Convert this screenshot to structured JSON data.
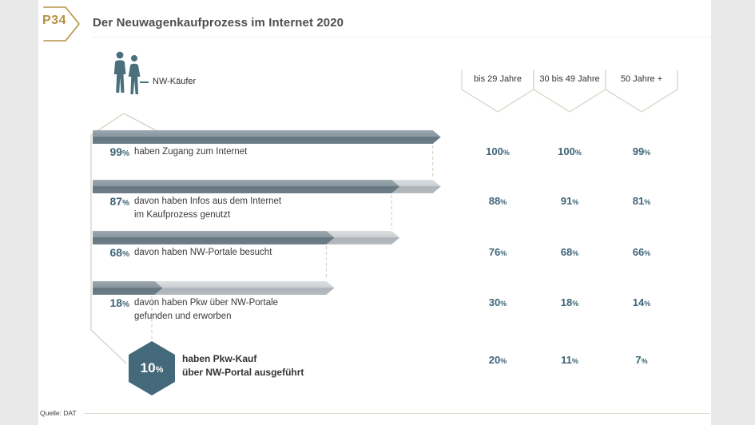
{
  "page": {
    "badge": "P34",
    "title": "Der Neuwagenkaufprozess im Internet 2020",
    "source": "Quelle: DAT"
  },
  "legend": {
    "icon": "two-people-silhouette-icon",
    "label": "NW-Käufer"
  },
  "colors": {
    "accent_teal": "#3e6577",
    "hexagon": "#44697a",
    "bar_dark": "#6e7e89",
    "bar_light": "#c6cacd",
    "outline_tan": "#d8d1c3",
    "gold": "#b49242",
    "strip_gray": "#e9e9e9",
    "text_dark": "#3a3a3a"
  },
  "chart_data": {
    "type": "bar",
    "subtype": "funnel",
    "title": "Der Neuwagenkaufprozess im Internet 2020",
    "unit": "%",
    "legend": "NW-Käufer",
    "age_columns": [
      "bis 29 Jahre",
      "30 bis 49 Jahre",
      "50 Jahre +"
    ],
    "rows": [
      {
        "value": 99,
        "shape": "bar",
        "label_lines": [
          "haben Zugang zum Internet"
        ],
        "by_age": [
          100,
          100,
          99
        ]
      },
      {
        "value": 87,
        "shape": "bar",
        "label_lines": [
          "davon haben Infos aus dem Internet",
          "im Kaufprozess genutzt"
        ],
        "by_age": [
          88,
          91,
          81
        ]
      },
      {
        "value": 68,
        "shape": "bar",
        "label_lines": [
          "davon haben NW-Portale besucht"
        ],
        "by_age": [
          76,
          68,
          66
        ]
      },
      {
        "value": 18,
        "shape": "bar",
        "label_lines": [
          "davon haben Pkw über NW-Portale",
          "gefunden und erworben"
        ],
        "by_age": [
          30,
          18,
          14
        ]
      },
      {
        "value": 10,
        "shape": "hexagon",
        "label_lines": [
          "haben Pkw-Kauf",
          "über NW-Portal ausgeführt"
        ],
        "by_age": [
          20,
          11,
          7
        ]
      }
    ],
    "source": "Quelle: DAT",
    "xlim": [
      0,
      100
    ],
    "grid": false
  }
}
